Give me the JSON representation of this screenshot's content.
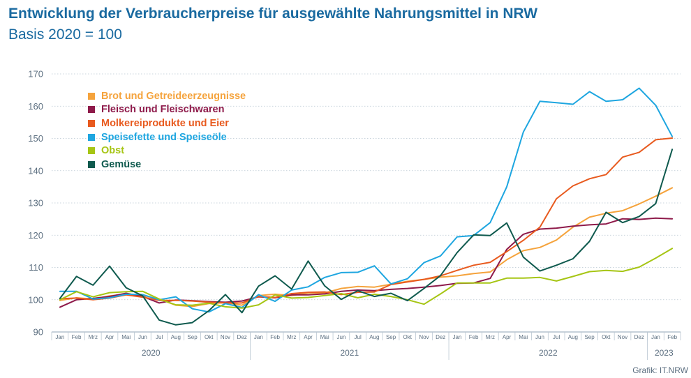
{
  "header": {
    "title": "Entwicklung der Verbraucherpreise für ausgewählte Nahrungsmittel in NRW",
    "subtitle": "Basis 2020 = 100"
  },
  "footer": {
    "credit": "Grafik: IT.NRW"
  },
  "chart_data": {
    "type": "line",
    "title": "Entwicklung der Verbraucherpreise für ausgewählte Nahrungsmittel in NRW",
    "subtitle": "Basis 2020 = 100",
    "ylim": [
      90,
      170
    ],
    "yticks": [
      90,
      100,
      110,
      120,
      130,
      140,
      150,
      160,
      170
    ],
    "grid": "horizontal-dotted",
    "legend_position": "top-left",
    "months": [
      "Jan",
      "Feb",
      "Mrz",
      "Apr",
      "Mai",
      "Jun",
      "Jul",
      "Aug",
      "Sep",
      "Okt",
      "Nov",
      "Dez",
      "Jan",
      "Feb",
      "Mrz",
      "Apr",
      "Mai",
      "Jun",
      "Jul",
      "Aug",
      "Sep",
      "Okt",
      "Nov",
      "Dez",
      "Jan",
      "Feb",
      "Mrz",
      "Apr",
      "Mai",
      "Jun",
      "Jul",
      "Aug",
      "Sep",
      "Okt",
      "Nov",
      "Dez",
      "Jan",
      "Feb"
    ],
    "years": [
      {
        "label": "2020",
        "start": 0,
        "end": 11
      },
      {
        "label": "2021",
        "start": 12,
        "end": 23
      },
      {
        "label": "2022",
        "start": 24,
        "end": 35
      },
      {
        "label": "2023",
        "start": 36,
        "end": 37
      }
    ],
    "series": [
      {
        "name": "Brot und Getreideerzeugnisse",
        "color": "#f5a33c",
        "values": [
          99.8,
          100.6,
          100.2,
          101.2,
          101.7,
          101.3,
          100.2,
          98.3,
          97.9,
          98.8,
          99.1,
          98.3,
          101.3,
          101.7,
          101.3,
          102.1,
          102.1,
          103.5,
          104.1,
          103.9,
          104.8,
          105.7,
          106.3,
          107.0,
          107.4,
          108.1,
          108.6,
          112.4,
          115.2,
          116.2,
          118.5,
          122.5,
          125.6,
          126.8,
          127.6,
          129.7,
          132.1,
          134.7
        ]
      },
      {
        "name": "Fleisch und Fleischwaren",
        "color": "#8e1a4a",
        "values": [
          97.7,
          100.0,
          100.4,
          101.0,
          102.0,
          101.0,
          99.0,
          99.9,
          99.7,
          99.4,
          99.2,
          99.6,
          100.9,
          100.6,
          101.5,
          101.5,
          101.8,
          102.6,
          103.0,
          102.8,
          103.2,
          103.5,
          103.9,
          104.4,
          105.1,
          105.2,
          106.6,
          115.6,
          120.3,
          121.9,
          122.2,
          122.8,
          123.2,
          123.5,
          125.1,
          124.9,
          125.3,
          125.1
        ]
      },
      {
        "name": "Molkereiprodukte und Eier",
        "color": "#e85a1e",
        "values": [
          100.3,
          100.5,
          100.0,
          100.5,
          101.5,
          100.8,
          99.8,
          99.8,
          99.6,
          99.2,
          99.0,
          99.0,
          101.0,
          100.7,
          101.9,
          102.3,
          102.4,
          101.6,
          102.3,
          102.4,
          104.7,
          105.5,
          106.3,
          107.4,
          109.1,
          110.7,
          111.6,
          114.9,
          118.4,
          122.5,
          131.3,
          135.3,
          137.5,
          138.8,
          144.2,
          145.7,
          149.6,
          150.1
        ]
      },
      {
        "name": "Speisefette und Speiseöle",
        "color": "#1ea6e0",
        "values": [
          102.6,
          102.6,
          100.2,
          100.6,
          101.7,
          101.6,
          100.0,
          100.9,
          97.2,
          96.2,
          98.8,
          97.6,
          101.6,
          99.5,
          103.0,
          104.0,
          106.9,
          108.4,
          108.5,
          110.5,
          104.9,
          106.5,
          111.5,
          113.6,
          119.5,
          119.9,
          123.9,
          135.0,
          152.0,
          161.5,
          161.1,
          160.6,
          164.5,
          161.5,
          162.0,
          165.6,
          160.3,
          150.6
        ]
      },
      {
        "name": "Obst",
        "color": "#a6c514",
        "values": [
          100.0,
          102.5,
          100.9,
          102.2,
          102.5,
          102.6,
          100.2,
          98.4,
          98.3,
          98.9,
          97.8,
          97.4,
          98.4,
          101.5,
          100.5,
          100.7,
          101.3,
          101.9,
          100.6,
          101.7,
          101.0,
          100.0,
          98.6,
          101.8,
          105.2,
          105.2,
          105.2,
          106.7,
          106.7,
          106.9,
          105.8,
          107.2,
          108.7,
          109.1,
          108.8,
          110.1,
          112.9,
          115.9
        ]
      },
      {
        "name": "Gemüse",
        "color": "#0f5a4e",
        "values": [
          100.4,
          107.2,
          104.5,
          110.4,
          103.7,
          101.2,
          93.7,
          92.2,
          92.9,
          96.6,
          101.6,
          96.0,
          104.2,
          107.4,
          103.3,
          112.0,
          104.3,
          100.1,
          102.8,
          101.0,
          102.0,
          99.7,
          103.5,
          107.5,
          114.6,
          120.1,
          119.9,
          123.8,
          113.2,
          108.9,
          110.7,
          112.7,
          118.1,
          127.1,
          123.9,
          125.8,
          129.8,
          146.6
        ]
      }
    ]
  }
}
